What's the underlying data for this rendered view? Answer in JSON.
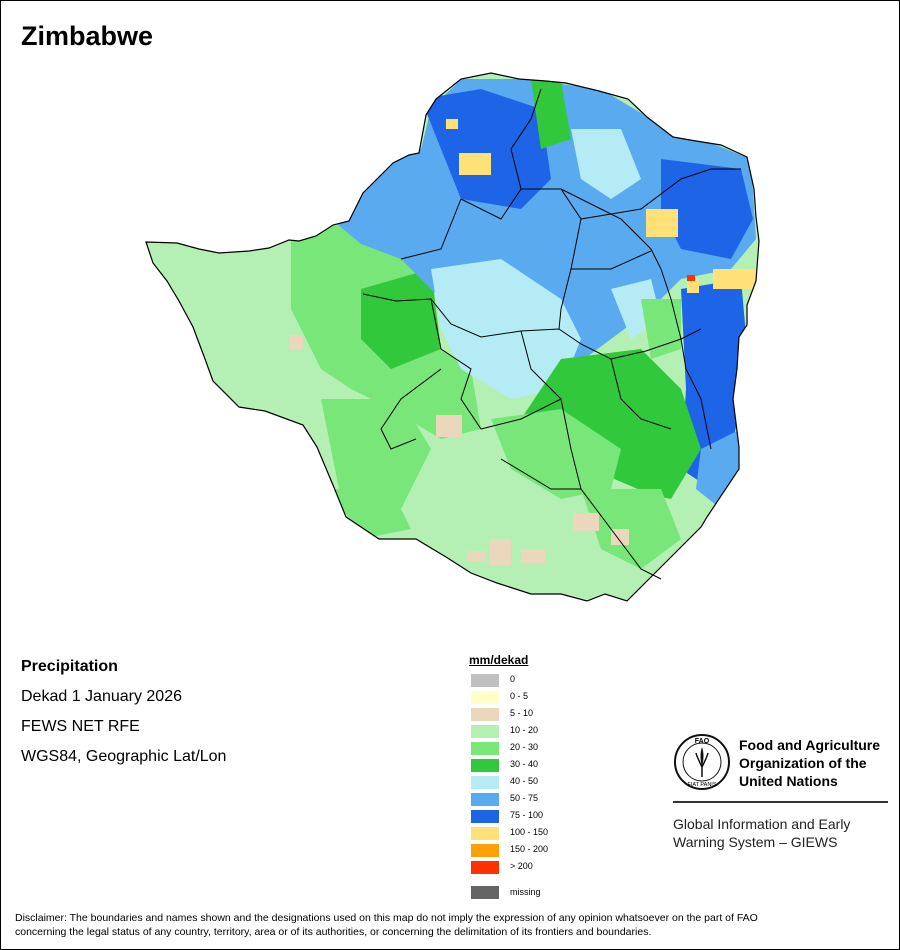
{
  "map": {
    "title": "Zimbabwe",
    "info": {
      "heading": "Precipitation",
      "period": "Dekad 1 January 2026",
      "source": "FEWS NET RFE",
      "projection": "WGS84, Geographic Lat/Lon"
    }
  },
  "legend": {
    "title": "mm/dekad",
    "classes": [
      {
        "label": "0",
        "color": "#c0c0c0"
      },
      {
        "label": "0 - 5",
        "color": "#ffffc8"
      },
      {
        "label": "5 - 10",
        "color": "#ebd7bb"
      },
      {
        "label": "10 - 20",
        "color": "#b4f0b4"
      },
      {
        "label": "20 - 30",
        "color": "#78e678"
      },
      {
        "label": "30 - 40",
        "color": "#32c83c"
      },
      {
        "label": "40 - 50",
        "color": "#b4ebf5"
      },
      {
        "label": "50 - 75",
        "color": "#5aaaf0"
      },
      {
        "label": "75 - 100",
        "color": "#1e64e6"
      },
      {
        "label": "100 - 150",
        "color": "#ffe178"
      },
      {
        "label": "150 - 200",
        "color": "#ffa00a"
      },
      {
        "label": "> 200",
        "color": "#ff3200"
      }
    ],
    "missing": {
      "label": "missing",
      "color": "#646464"
    }
  },
  "branding": {
    "org_lines": [
      "Food and Agriculture",
      "Organization of the",
      "United Nations"
    ],
    "logo_text": {
      "top": "FAO",
      "bottom": "FIAT PANIS"
    },
    "system_lines": [
      "Global Information and Early",
      "Warning System – GIEWS"
    ]
  },
  "disclaimer": {
    "line1": "Disclaimer: The boundaries and names shown and the designations used on this map do not imply the expression of any opinion whatsoever on the part of FAO",
    "line2": "concerning the legal status of any country, territory, area or of its authorities, or concerning the delimitation of its frontiers and boundaries."
  }
}
